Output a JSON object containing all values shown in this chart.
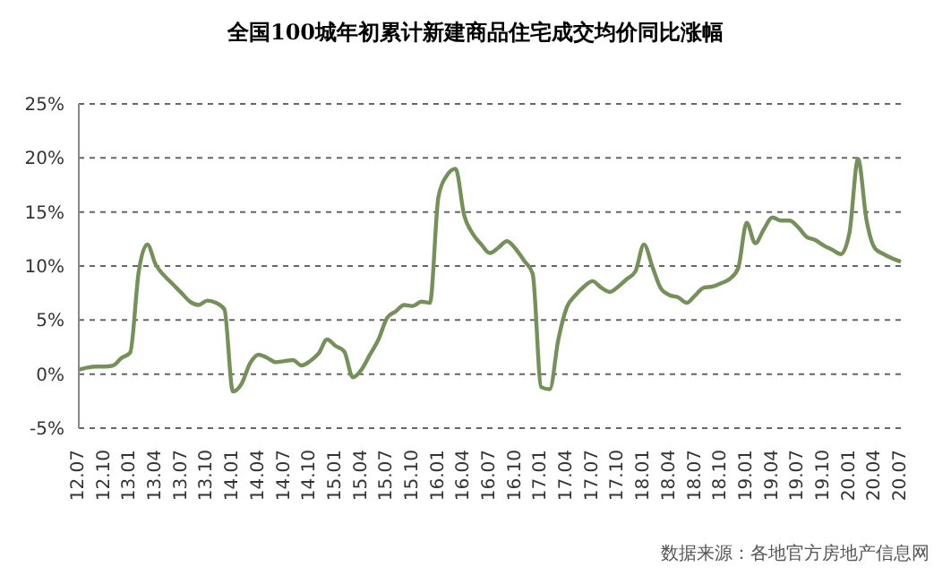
{
  "chart_data": {
    "type": "line",
    "title": "全国100城年初累计新建商品住宅成交均价同比涨幅",
    "categories": [
      "12.07",
      null,
      null,
      "12.10",
      null,
      null,
      "13.01",
      null,
      null,
      "13.04",
      null,
      null,
      "13.07",
      null,
      null,
      "13.10",
      null,
      null,
      "14.01",
      null,
      null,
      "14.04",
      null,
      null,
      "14.07",
      null,
      null,
      "14.10",
      null,
      null,
      "15.01",
      null,
      null,
      "15.04",
      null,
      null,
      "15.07",
      null,
      null,
      "15.10",
      null,
      null,
      "16.01",
      null,
      null,
      "16.04",
      null,
      null,
      "16.07",
      null,
      null,
      "16.10",
      null,
      null,
      "17.01",
      null,
      null,
      "17.04",
      null,
      null,
      "17.07",
      null,
      null,
      "17.10",
      null,
      null,
      "18.01",
      null,
      null,
      "18.04",
      null,
      null,
      "18.07",
      null,
      null,
      "18.10",
      null,
      null,
      "19.01",
      null,
      null,
      "19.04",
      null,
      null,
      "19.07",
      null,
      null,
      "19.10",
      null,
      null,
      "20.01",
      null,
      null,
      "20.04",
      null,
      null,
      "20.07"
    ],
    "series": [
      {
        "color": "#76905a",
        "values": [
          0.4,
          0.6,
          0.7,
          0.7,
          0.8,
          1.5,
          2.0,
          9.5,
          12.0,
          10.1,
          9.1,
          8.3,
          7.5,
          6.7,
          6.4,
          6.8,
          6.6,
          6.0,
          -1.6,
          -0.9,
          1.0,
          1.8,
          1.5,
          1.1,
          1.2,
          1.3,
          0.8,
          1.2,
          1.9,
          3.2,
          2.6,
          2.1,
          -0.3,
          0.4,
          1.8,
          3.2,
          5.2,
          5.8,
          6.4,
          6.3,
          6.7,
          6.6,
          16.4,
          18.4,
          19.0,
          14.7,
          13.0,
          12.0,
          11.2,
          11.7,
          12.3,
          11.6,
          10.5,
          9.3,
          -1.2,
          -1.4,
          3.2,
          6.2,
          7.3,
          8.1,
          8.6,
          8.0,
          7.6,
          8.1,
          8.8,
          9.5,
          12.0,
          9.9,
          7.9,
          7.3,
          7.1,
          6.6,
          7.3,
          8.0,
          8.1,
          8.4,
          8.8,
          9.8,
          14.0,
          12.1,
          13.4,
          14.5,
          14.2,
          14.2,
          13.6,
          12.7,
          12.4,
          11.9,
          11.5,
          11.1,
          13.1,
          19.9,
          14.2,
          11.6,
          11.1,
          10.7,
          10.4
        ]
      }
    ],
    "ylim": [
      -5,
      25
    ],
    "yticks": [
      {
        "value": -5,
        "label": "-5%"
      },
      {
        "value": 0,
        "label": "0%"
      },
      {
        "value": 5,
        "label": "5%"
      },
      {
        "value": 10,
        "label": "10%"
      },
      {
        "value": 15,
        "label": "15%"
      },
      {
        "value": 20,
        "label": "20%"
      },
      {
        "value": 25,
        "label": "25%"
      }
    ],
    "grid": "y",
    "annotations": [
      "数据来源：各地官方房地产信息网"
    ]
  }
}
